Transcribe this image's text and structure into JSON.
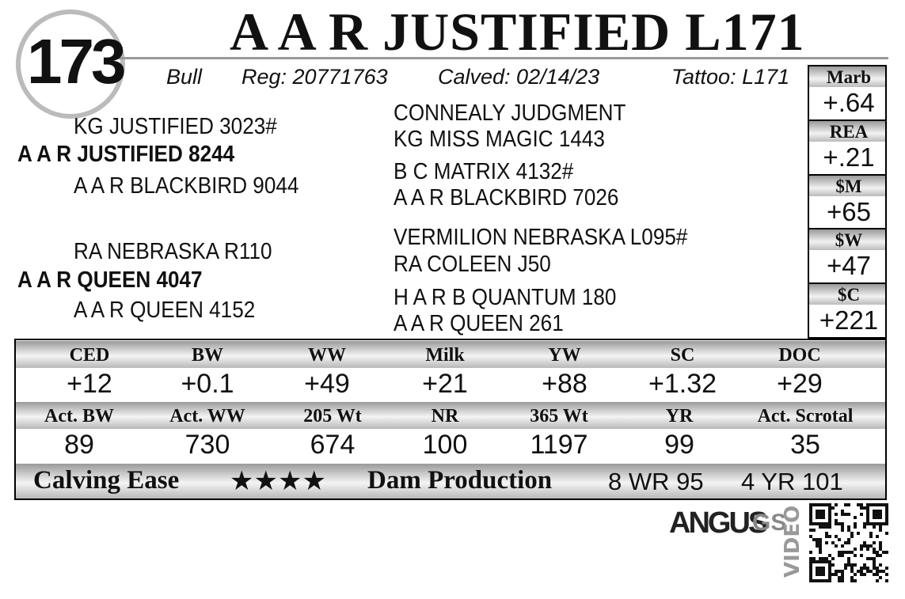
{
  "lot": "173",
  "name": "A A R JUSTIFIED L171",
  "info": [
    "Bull",
    "Reg: 20771763",
    "Calved: 02/14/23",
    "Tattoo: L171"
  ],
  "pedigree": {
    "sire": "A A R JUSTIFIED 8244",
    "sire_sire": "KG JUSTIFIED 3023#",
    "sire_dam": "A A R BLACKBIRD 9044",
    "dam": "A A R QUEEN 4047",
    "dam_sire": "RA NEBRASKA R110",
    "dam_dam": "A A R QUEEN 4152",
    "grand": [
      "CONNEALY JUDGMENT",
      "KG MISS MAGIC 1443",
      "B C MATRIX 4132#",
      "A A R BLACKBIRD 7026",
      "VERMILION NEBRASKA L095#",
      "RA COLEEN J50",
      "H A R B QUANTUM 180",
      "A A R QUEEN 261"
    ]
  },
  "side_epds": [
    {
      "label": "Marb",
      "value": "+.64"
    },
    {
      "label": "REA",
      "value": "+.21"
    },
    {
      "label": "$M",
      "value": "+65"
    },
    {
      "label": "$W",
      "value": "+47"
    },
    {
      "label": "$C",
      "value": "+221"
    }
  ],
  "epds": [
    {
      "label": "CED",
      "value": "+12"
    },
    {
      "label": "BW",
      "value": "+0.1"
    },
    {
      "label": "WW",
      "value": "+49"
    },
    {
      "label": "Milk",
      "value": "+21"
    },
    {
      "label": "YW",
      "value": "+88"
    },
    {
      "label": "SC",
      "value": "+1.32"
    },
    {
      "label": "DOC",
      "value": "+29"
    }
  ],
  "actuals": [
    {
      "label": "Act. BW",
      "value": "89"
    },
    {
      "label": "Act. WW",
      "value": "730"
    },
    {
      "label": "205 Wt",
      "value": "674"
    },
    {
      "label": "NR",
      "value": "100"
    },
    {
      "label": "365 Wt",
      "value": "1197"
    },
    {
      "label": "YR",
      "value": "99"
    },
    {
      "label": "Act. Scrotal",
      "value": "35"
    }
  ],
  "footer": {
    "calving_label": "Calving Ease",
    "calving_stars": "★★★★",
    "dam_label": "Dam Production",
    "dam_values": [
      "8 WR 95",
      "4 YR 101"
    ]
  },
  "logo": {
    "main": "ANGUS",
    "sub": "GS",
    "video": "VIDEO"
  }
}
